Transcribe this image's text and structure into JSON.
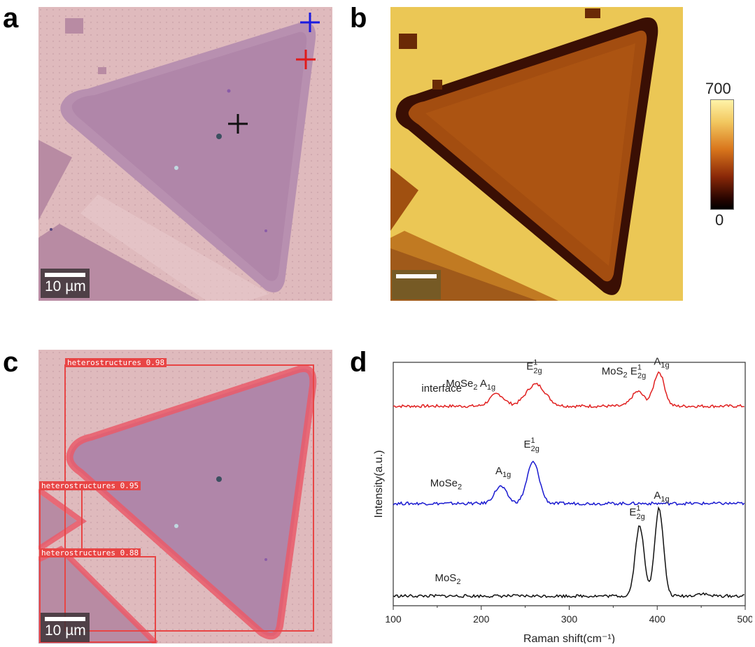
{
  "panels": {
    "a": {
      "letter": "a",
      "scalebar": "10 µm"
    },
    "b": {
      "letter": "b",
      "colorbar_max": "700",
      "colorbar_min": "0"
    },
    "c": {
      "letter": "c",
      "scalebar": "10 µm",
      "detections": [
        {
          "label": "heterostructures 0.98"
        },
        {
          "label": "heterostructures 0.95"
        },
        {
          "label": "heterostructures 0.88"
        }
      ]
    },
    "d": {
      "letter": "d"
    }
  },
  "colors": {
    "interface": "#e02020",
    "MoSe2": "#1a1ad0",
    "MoS2": "#111111",
    "marker_blue": "#1a1ae0",
    "marker_red": "#e01a1a",
    "marker_black": "#111111",
    "detection_box": "#e84545"
  },
  "chart_data": {
    "type": "line",
    "xlabel": "Raman shift(cm⁻¹)",
    "ylabel": "Intensity(a.u.)",
    "xlim": [
      100,
      500
    ],
    "xticks": [
      "100",
      "200",
      "300",
      "400",
      "500"
    ],
    "series": [
      {
        "name": "interface",
        "baseline": 0.82,
        "peaks": [
          [
            218,
            0.05,
            8
          ],
          [
            262,
            0.09,
            11
          ],
          [
            378,
            0.06,
            7
          ],
          [
            402,
            0.14,
            6
          ]
        ],
        "annotations": [
          {
            "x": 200,
            "text": "MoSe₂ A₁g",
            "parts": [
              [
                "MoSe",
                0
              ],
              [
                "2",
                1
              ],
              [
                " A",
                0
              ],
              [
                "1g",
                1
              ]
            ]
          },
          {
            "x": 265,
            "text": "E¹₂g",
            "type": "E"
          },
          {
            "x": 360,
            "text": "MoS₂ E¹₂g",
            "type": "MoS2E"
          },
          {
            "x": 405,
            "text": "A₁g",
            "type": "A"
          }
        ]
      },
      {
        "name": "MoSe2",
        "baseline": 0.42,
        "peaks": [
          [
            222,
            0.07,
            7
          ],
          [
            259,
            0.17,
            7
          ]
        ],
        "annotations": [
          {
            "x": 225,
            "text": "A₁g",
            "type": "A"
          },
          {
            "x": 258,
            "text": "E¹₂g",
            "type": "E"
          }
        ]
      },
      {
        "name": "MoS2",
        "baseline": 0.04,
        "peaks": [
          [
            380,
            0.29,
            5
          ],
          [
            402,
            0.36,
            5
          ],
          [
            450,
            0.01,
            6
          ]
        ],
        "annotations": [
          {
            "x": 380,
            "text": "E¹₂g",
            "type": "E"
          },
          {
            "x": 405,
            "text": "A₁g",
            "type": "A"
          }
        ]
      }
    ],
    "series_labels": [
      "interface",
      "MoSe₂",
      "MoS₂"
    ]
  }
}
